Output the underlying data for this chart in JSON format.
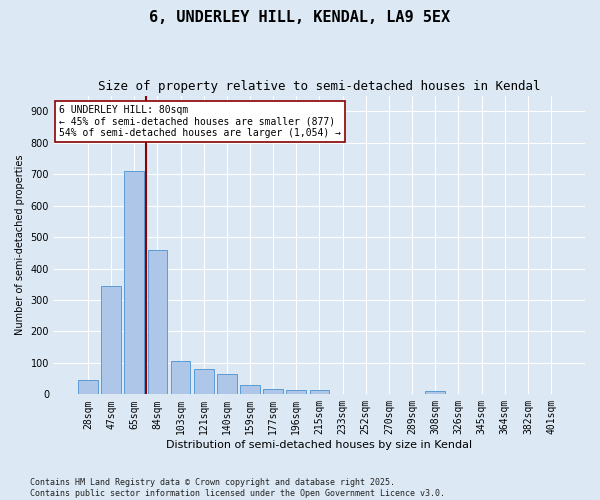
{
  "title": "6, UNDERLEY HILL, KENDAL, LA9 5EX",
  "subtitle": "Size of property relative to semi-detached houses in Kendal",
  "xlabel": "Distribution of semi-detached houses by size in Kendal",
  "ylabel": "Number of semi-detached properties",
  "categories": [
    "28sqm",
    "47sqm",
    "65sqm",
    "84sqm",
    "103sqm",
    "121sqm",
    "140sqm",
    "159sqm",
    "177sqm",
    "196sqm",
    "215sqm",
    "233sqm",
    "252sqm",
    "270sqm",
    "289sqm",
    "308sqm",
    "326sqm",
    "345sqm",
    "364sqm",
    "382sqm",
    "401sqm"
  ],
  "values": [
    45,
    345,
    710,
    460,
    105,
    80,
    65,
    30,
    18,
    15,
    13,
    0,
    0,
    0,
    0,
    10,
    0,
    0,
    0,
    0,
    0
  ],
  "bar_color": "#aec6e8",
  "bar_edgecolor": "#5b9bd5",
  "vline_x": 2.5,
  "vline_color": "#8b0000",
  "annotation_text": "6 UNDERLEY HILL: 80sqm\n← 45% of semi-detached houses are smaller (877)\n54% of semi-detached houses are larger (1,054) →",
  "annotation_box_color": "#ffffff",
  "annotation_box_edgecolor": "#8b0000",
  "ylim": [
    0,
    950
  ],
  "yticks": [
    0,
    100,
    200,
    300,
    400,
    500,
    600,
    700,
    800,
    900
  ],
  "bg_color": "#dce9f5",
  "plot_bg_color": "#dce9f5",
  "footer": "Contains HM Land Registry data © Crown copyright and database right 2025.\nContains public sector information licensed under the Open Government Licence v3.0.",
  "title_fontsize": 11,
  "subtitle_fontsize": 9,
  "annotation_fontsize": 7,
  "footer_fontsize": 6,
  "ylabel_fontsize": 7,
  "xlabel_fontsize": 8,
  "tick_fontsize": 7
}
